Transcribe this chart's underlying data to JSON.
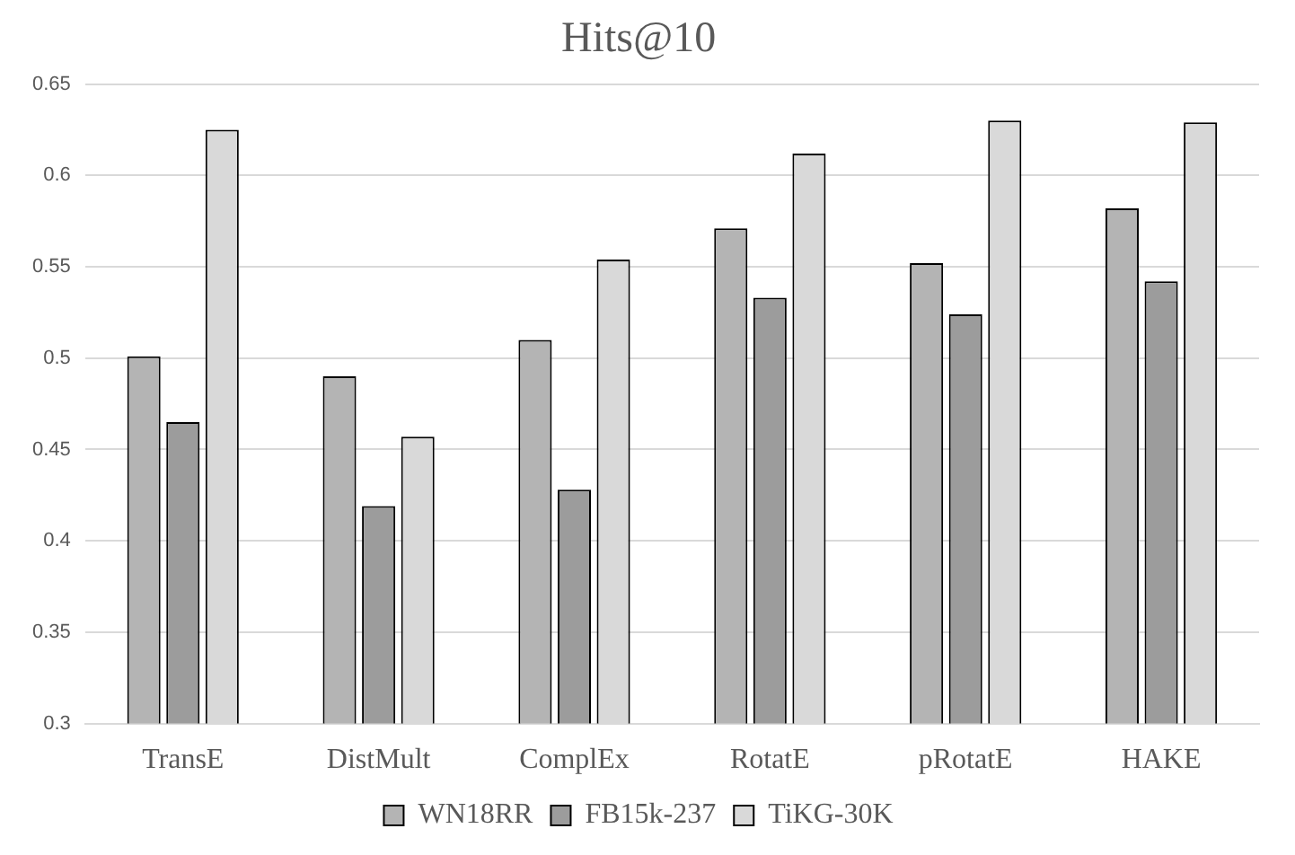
{
  "chart_data": {
    "type": "bar",
    "title": "Hits@10",
    "categories": [
      "TransE",
      "DistMult",
      "ComplEx",
      "RotatE",
      "pRotatE",
      "HAKE"
    ],
    "series": [
      {
        "name": "WN18RR",
        "color": "#b4b4b4",
        "values": [
          0.501,
          0.49,
          0.51,
          0.571,
          0.552,
          0.582
        ]
      },
      {
        "name": "FB15k-237",
        "color": "#9c9c9c",
        "values": [
          0.465,
          0.419,
          0.428,
          0.533,
          0.524,
          0.542
        ]
      },
      {
        "name": "TiKG-30K",
        "color": "#d9d9d9",
        "values": [
          0.625,
          0.457,
          0.554,
          0.612,
          0.63,
          0.629
        ]
      }
    ],
    "ylim": [
      0.3,
      0.65
    ],
    "yticks": [
      0.3,
      0.35,
      0.4,
      0.45,
      0.5,
      0.55,
      0.6,
      0.65
    ],
    "grid": "y",
    "legend": "bottom"
  }
}
